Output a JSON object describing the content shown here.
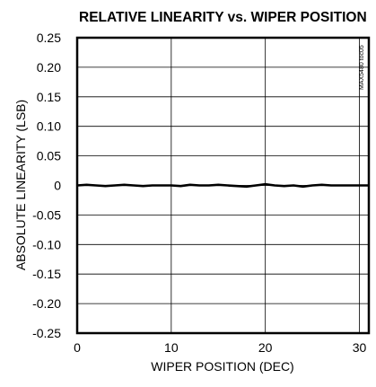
{
  "chart_data": {
    "type": "line",
    "title": "RELATIVE LINEARITY vs. WIPER POSITION",
    "xlabel": "WIPER POSITION (DEC)",
    "ylabel": "ABSOLUTE LINEARITY (LSB)",
    "side_label": "MAX5480 toc05",
    "xlim": [
      0,
      31
    ],
    "ylim": [
      -0.25,
      0.25
    ],
    "xticks": [
      0,
      10,
      20,
      30
    ],
    "xtick_labels": [
      "0",
      "10",
      "20",
      "30"
    ],
    "yticks": [
      0.25,
      0.2,
      0.15,
      0.1,
      0.05,
      0,
      -0.05,
      -0.1,
      -0.15,
      -0.2,
      -0.25
    ],
    "ytick_labels": [
      "0.25",
      "0.20",
      "0.15",
      "0.10",
      "0.05",
      "0",
      "-0.05",
      "-0.10",
      "-0.15",
      "-0.20",
      "-0.25"
    ],
    "grid": true,
    "series": [
      {
        "x": [
          0,
          1,
          2,
          3,
          4,
          5,
          6,
          7,
          8,
          9,
          10,
          11,
          12,
          13,
          14,
          15,
          16,
          17,
          18,
          19,
          20,
          21,
          22,
          23,
          24,
          25,
          26,
          27,
          28,
          29,
          30,
          31
        ],
        "values": [
          0.0,
          0.001,
          0.0,
          -0.001,
          0.0,
          0.001,
          0.0,
          -0.001,
          0.0,
          0.0,
          0.0,
          -0.001,
          0.001,
          0.0,
          0.0,
          0.001,
          0.0,
          -0.001,
          -0.002,
          0.0,
          0.002,
          0.0,
          -0.001,
          0.0,
          -0.002,
          0.0,
          0.001,
          0.0,
          0.0,
          0.0,
          0.0,
          0.0
        ],
        "color": "#000000"
      }
    ]
  }
}
